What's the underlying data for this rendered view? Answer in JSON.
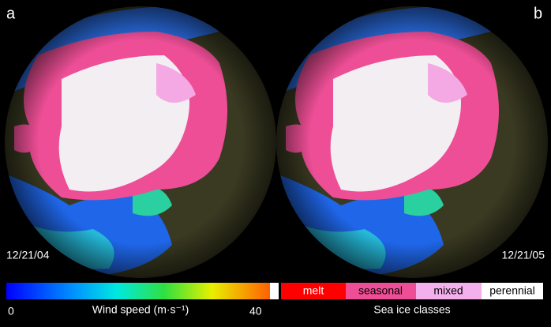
{
  "panels": [
    {
      "letter": "a",
      "date": "12/21/04"
    },
    {
      "letter": "b",
      "date": "12/21/05"
    }
  ],
  "colorbar": {
    "min_label": "0",
    "title": "Wind speed (m·s⁻¹)",
    "max_label": "40"
  },
  "legend": {
    "title": "Sea ice classes",
    "classes": [
      "melt",
      "seasonal",
      "mixed",
      "perennial"
    ]
  }
}
